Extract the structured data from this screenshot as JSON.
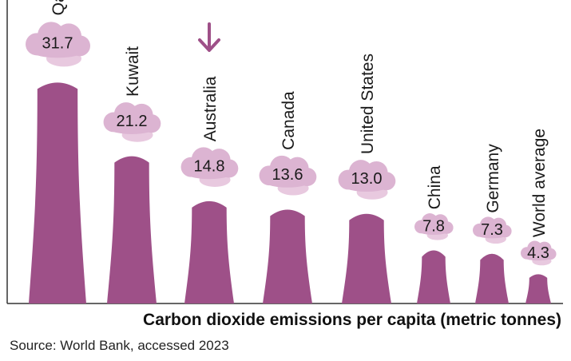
{
  "chart_data": {
    "type": "bar",
    "categories": [
      "Qatar",
      "Kuwait",
      "Australia",
      "Canada",
      "United States",
      "China",
      "Germany",
      "World average"
    ],
    "values": [
      31.7,
      21.2,
      14.8,
      13.6,
      13.0,
      7.8,
      7.3,
      4.3
    ],
    "value_labels": [
      "31.7",
      "21.2",
      "14.8",
      "13.6",
      "13.0",
      "7.8",
      "7.3",
      "4.3"
    ],
    "highlight": "Australia",
    "xlabel": "Carbon dioxide emissions per capita (metric tonnes)",
    "ylim": [
      0,
      35
    ],
    "grid": false,
    "legend": "none",
    "colors": {
      "tower": "#9e5088",
      "cloud": "#dcb4d2",
      "cloud_light": "#e8c9df",
      "arrow": "#9e5088",
      "axis": "#333333"
    }
  },
  "source": "Source: World Bank, accessed 2023"
}
